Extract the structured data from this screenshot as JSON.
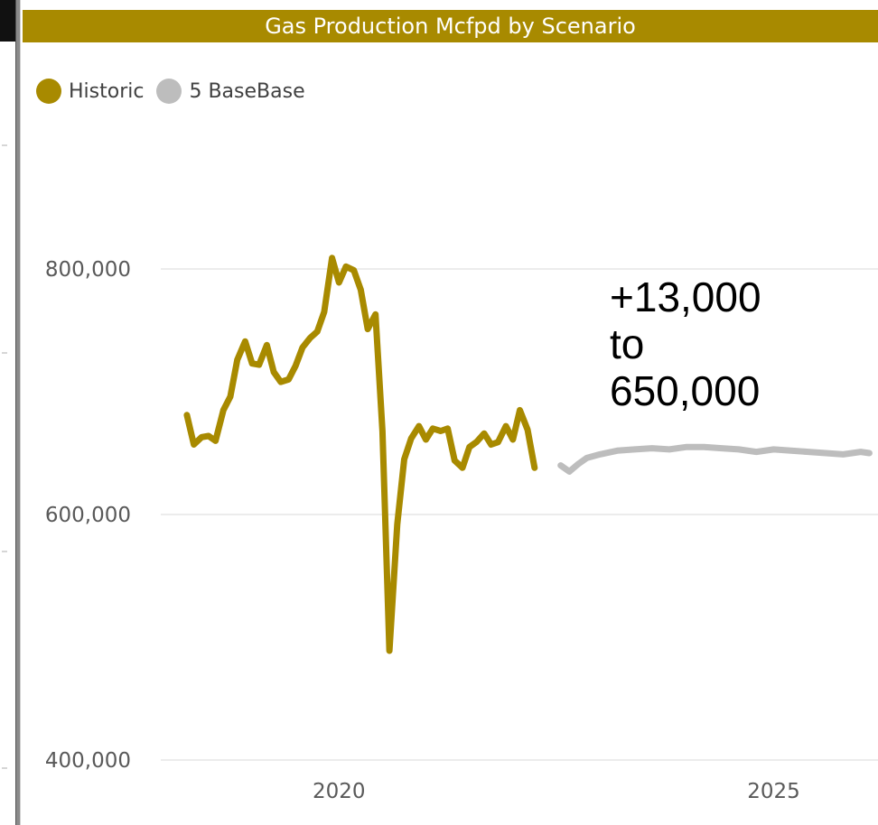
{
  "colors": {
    "title_bg": "#a88a00",
    "historic": "#a88a00",
    "base": "#bdbdbd",
    "grid": "#ececec"
  },
  "chart_data": {
    "type": "line",
    "title": "Gas Production Mcfpd by Scenario",
    "legend_position": "top-left",
    "grid": true,
    "ylim": [
      400000,
      800000
    ],
    "y_ticks": [
      400000,
      600000,
      800000
    ],
    "y_tick_labels": [
      "400,000",
      "600,000",
      "800,000"
    ],
    "x_tick_labels": [
      "2020",
      "2025"
    ],
    "x_tick_values": [
      2020,
      2025
    ],
    "xlim": [
      2017.95,
      2026.2
    ],
    "series": [
      {
        "name": "Historic",
        "color": "#a88a00",
        "x": [
          2018.25,
          2018.33,
          2018.42,
          2018.5,
          2018.58,
          2018.67,
          2018.75,
          2018.83,
          2018.92,
          2019.0,
          2019.08,
          2019.17,
          2019.25,
          2019.33,
          2019.42,
          2019.5,
          2019.58,
          2019.67,
          2019.75,
          2019.83,
          2019.92,
          2020.0,
          2020.08,
          2020.17,
          2020.25,
          2020.33,
          2020.42,
          2020.5,
          2020.58,
          2020.67,
          2020.75,
          2020.83,
          2020.92,
          2021.0,
          2021.08,
          2021.17,
          2021.25,
          2021.33,
          2021.42,
          2021.5,
          2021.58,
          2021.67,
          2021.75,
          2021.83,
          2021.92,
          2022.0,
          2022.08,
          2022.17,
          2022.25
        ],
        "y": [
          681000,
          657000,
          663000,
          664000,
          660000,
          685000,
          696000,
          726000,
          741000,
          723000,
          722000,
          738000,
          716000,
          708000,
          710000,
          721000,
          736000,
          744000,
          749000,
          765000,
          809000,
          789000,
          802000,
          799000,
          783000,
          751000,
          763000,
          668000,
          489000,
          592000,
          645000,
          662000,
          672000,
          661000,
          670000,
          668000,
          670000,
          644000,
          638000,
          655000,
          659000,
          666000,
          657000,
          659000,
          672000,
          661000,
          685000,
          669000,
          638000
        ]
      },
      {
        "name": "5 BaseBase",
        "color": "#bdbdbd",
        "x": [
          2022.55,
          2022.65,
          2022.75,
          2022.85,
          2023.0,
          2023.2,
          2023.4,
          2023.6,
          2023.8,
          2024.0,
          2024.2,
          2024.4,
          2024.6,
          2024.8,
          2025.0,
          2025.2,
          2025.4,
          2025.6,
          2025.8,
          2026.0,
          2026.1
        ],
        "y": [
          640000,
          635000,
          641000,
          646000,
          649000,
          652000,
          653000,
          654000,
          653000,
          655000,
          655000,
          654000,
          653000,
          651000,
          653000,
          652000,
          651000,
          650000,
          649000,
          651000,
          650000
        ]
      }
    ],
    "annotation": [
      "+13,000",
      "to",
      "650,000"
    ]
  }
}
